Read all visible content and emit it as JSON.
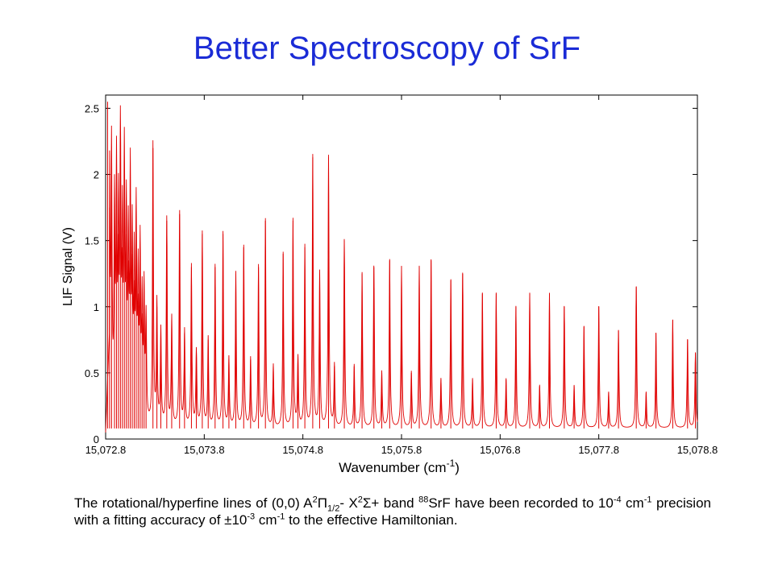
{
  "slide": {
    "title": "Better Spectroscopy of SrF"
  },
  "caption": {
    "t1": "The rotational/hyperfine lines of (0,0) A",
    "s1": "2",
    "t2": "Π",
    "s2": "1/2",
    "t3": "- X",
    "s3": "2",
    "t4": "Σ+ band ",
    "s4": "88",
    "t5": "SrF have been recorded to 10",
    "s5": "-4",
    "t6": " cm",
    "s6": "-1",
    "t7": " precision with a fitting accuracy of ±10",
    "s7": "-3",
    "t8": " cm",
    "s8": "-1",
    "t9": "  to the effective Hamiltonian."
  },
  "chart_data": {
    "type": "line",
    "title": "",
    "xlabel": "Wavenumber (cm",
    "xlabel_sup": "-1",
    "xlabel_end": ")",
    "ylabel": "LIF Signal (V)",
    "xlim": [
      15072.8,
      15078.8
    ],
    "ylim": [
      0,
      2.6
    ],
    "x_ticks": [
      15072.8,
      15073.8,
      15074.8,
      15075.8,
      15076.8,
      15077.8,
      15078.8
    ],
    "x_tick_labels": [
      "15,072.8",
      "15,073.8",
      "15,074.8",
      "15,075.8",
      "15,076.8",
      "15,077.8",
      "15,078.8"
    ],
    "y_ticks": [
      0,
      0.5,
      1,
      1.5,
      2,
      2.5
    ],
    "y_tick_labels": [
      "0",
      "0.5",
      "1",
      "1.5",
      "2",
      "2.5"
    ],
    "grid": false,
    "line_color": "#e00000",
    "baseline": 0.08,
    "series": [
      {
        "peaks": [
          {
            "x": 15072.82,
            "y": 2.55
          },
          {
            "x": 15072.84,
            "y": 1.75
          },
          {
            "x": 15072.86,
            "y": 2.05
          },
          {
            "x": 15072.89,
            "y": 1.65
          },
          {
            "x": 15072.91,
            "y": 1.9
          },
          {
            "x": 15072.93,
            "y": 1.55
          },
          {
            "x": 15072.95,
            "y": 2.13
          },
          {
            "x": 15072.97,
            "y": 1.45
          },
          {
            "x": 15072.99,
            "y": 1.97
          },
          {
            "x": 15073.01,
            "y": 1.55
          },
          {
            "x": 15073.03,
            "y": 1.35
          },
          {
            "x": 15073.05,
            "y": 1.85
          },
          {
            "x": 15073.07,
            "y": 1.4
          },
          {
            "x": 15073.09,
            "y": 1.2
          },
          {
            "x": 15073.11,
            "y": 1.6
          },
          {
            "x": 15073.13,
            "y": 1.1
          },
          {
            "x": 15073.15,
            "y": 1.35
          },
          {
            "x": 15073.17,
            "y": 0.95
          },
          {
            "x": 15073.19,
            "y": 1.05
          },
          {
            "x": 15073.21,
            "y": 0.85
          },
          {
            "x": 15073.28,
            "y": 2.2
          },
          {
            "x": 15073.32,
            "y": 1.0
          },
          {
            "x": 15073.36,
            "y": 0.8
          },
          {
            "x": 15073.42,
            "y": 1.65
          },
          {
            "x": 15073.47,
            "y": 0.9
          },
          {
            "x": 15073.55,
            "y": 1.7
          },
          {
            "x": 15073.6,
            "y": 0.8
          },
          {
            "x": 15073.67,
            "y": 1.3
          },
          {
            "x": 15073.72,
            "y": 0.65
          },
          {
            "x": 15073.78,
            "y": 1.55
          },
          {
            "x": 15073.84,
            "y": 0.75
          },
          {
            "x": 15073.91,
            "y": 1.3
          },
          {
            "x": 15073.99,
            "y": 1.55
          },
          {
            "x": 15074.05,
            "y": 0.6
          },
          {
            "x": 15074.12,
            "y": 1.25
          },
          {
            "x": 15074.2,
            "y": 1.45
          },
          {
            "x": 15074.27,
            "y": 0.6
          },
          {
            "x": 15074.35,
            "y": 1.3
          },
          {
            "x": 15074.42,
            "y": 1.65
          },
          {
            "x": 15074.5,
            "y": 0.55
          },
          {
            "x": 15074.6,
            "y": 1.4
          },
          {
            "x": 15074.7,
            "y": 1.65
          },
          {
            "x": 15074.75,
            "y": 0.6
          },
          {
            "x": 15074.82,
            "y": 1.45
          },
          {
            "x": 15074.9,
            "y": 2.13
          },
          {
            "x": 15074.97,
            "y": 1.25
          },
          {
            "x": 15075.06,
            "y": 2.13
          },
          {
            "x": 15075.12,
            "y": 0.55
          },
          {
            "x": 15075.22,
            "y": 1.5
          },
          {
            "x": 15075.32,
            "y": 0.55
          },
          {
            "x": 15075.4,
            "y": 1.25
          },
          {
            "x": 15075.52,
            "y": 1.3
          },
          {
            "x": 15075.6,
            "y": 0.5
          },
          {
            "x": 15075.68,
            "y": 1.35
          },
          {
            "x": 15075.8,
            "y": 1.3
          },
          {
            "x": 15075.9,
            "y": 0.5
          },
          {
            "x": 15075.98,
            "y": 1.3
          },
          {
            "x": 15076.1,
            "y": 1.35
          },
          {
            "x": 15076.2,
            "y": 0.45
          },
          {
            "x": 15076.3,
            "y": 1.2
          },
          {
            "x": 15076.42,
            "y": 1.25
          },
          {
            "x": 15076.52,
            "y": 0.45
          },
          {
            "x": 15076.62,
            "y": 1.1
          },
          {
            "x": 15076.76,
            "y": 1.1
          },
          {
            "x": 15076.86,
            "y": 0.45
          },
          {
            "x": 15076.96,
            "y": 1.0
          },
          {
            "x": 15077.1,
            "y": 1.1
          },
          {
            "x": 15077.2,
            "y": 0.4
          },
          {
            "x": 15077.3,
            "y": 1.1
          },
          {
            "x": 15077.45,
            "y": 1.0
          },
          {
            "x": 15077.55,
            "y": 0.4
          },
          {
            "x": 15077.65,
            "y": 0.85
          },
          {
            "x": 15077.8,
            "y": 1.0
          },
          {
            "x": 15077.9,
            "y": 0.35
          },
          {
            "x": 15078.0,
            "y": 0.82
          },
          {
            "x": 15078.18,
            "y": 1.15
          },
          {
            "x": 15078.28,
            "y": 0.35
          },
          {
            "x": 15078.38,
            "y": 0.8
          },
          {
            "x": 15078.55,
            "y": 0.9
          },
          {
            "x": 15078.7,
            "y": 0.75
          },
          {
            "x": 15078.78,
            "y": 0.65
          }
        ]
      }
    ]
  }
}
